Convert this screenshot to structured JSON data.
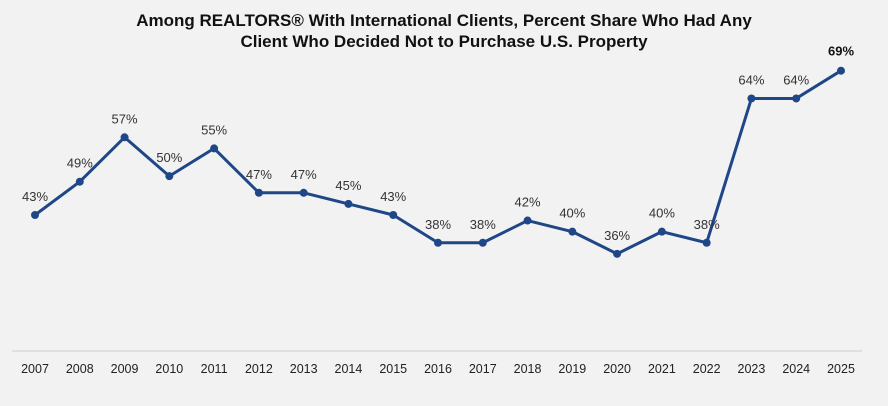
{
  "chart_data": {
    "type": "line",
    "title_lines": [
      "Among REALTORS® With International Clients, Percent Share Who Had Any",
      "Client Who Decided Not to Purchase U.S. Property"
    ],
    "categories": [
      "2007",
      "2008",
      "2009",
      "2010",
      "2011",
      "2012",
      "2013",
      "2014",
      "2015",
      "2016",
      "2017",
      "2018",
      "2019",
      "2020",
      "2021",
      "2022",
      "2023",
      "2024",
      "2025"
    ],
    "values": [
      43,
      49,
      57,
      50,
      55,
      47,
      47,
      45,
      43,
      38,
      38,
      42,
      40,
      36,
      40,
      38,
      64,
      64,
      69
    ],
    "data_labels": [
      "43%",
      "49%",
      "57%",
      "50%",
      "55%",
      "47%",
      "47%",
      "45%",
      "43%",
      "38%",
      "38%",
      "42%",
      "40%",
      "36%",
      "40%",
      "38%",
      "64%",
      "64%",
      "69%"
    ],
    "xlabel": "",
    "ylabel": "",
    "grid": false,
    "line_color": "#1f4788",
    "highlight_last_label": true
  }
}
